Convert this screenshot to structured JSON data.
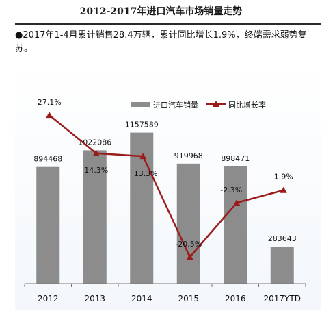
{
  "header": {
    "title": "2012-2017年进口汽车市场销量走势",
    "note": "●2017年1-4月累计销售28.4万辆，累计同比增长1.9%，终端需求弱势复苏。"
  },
  "chart_data": {
    "type": "bar+line",
    "categories": [
      "2012",
      "2013",
      "2014",
      "2015",
      "2016",
      "2017YTD"
    ],
    "series": [
      {
        "name": "进口汽车销量",
        "type": "bar",
        "color": "#8c8c8c",
        "values": [
          894468,
          1022086,
          1157589,
          919968,
          898471,
          283643
        ],
        "labels": [
          "894468",
          "1022086",
          "1157589",
          "919968",
          "898471",
          "283643"
        ]
      },
      {
        "name": "同比增长率",
        "type": "line",
        "color": "#9b1b1b",
        "values": [
          27.1,
          14.3,
          13.3,
          -20.5,
          -2.3,
          1.9
        ],
        "labels": [
          "27.1%",
          "14.3%",
          "13.3%",
          "-20.5%",
          "-2.3%",
          "1.9%"
        ]
      }
    ],
    "legend_position": "top-right",
    "grid": false
  }
}
